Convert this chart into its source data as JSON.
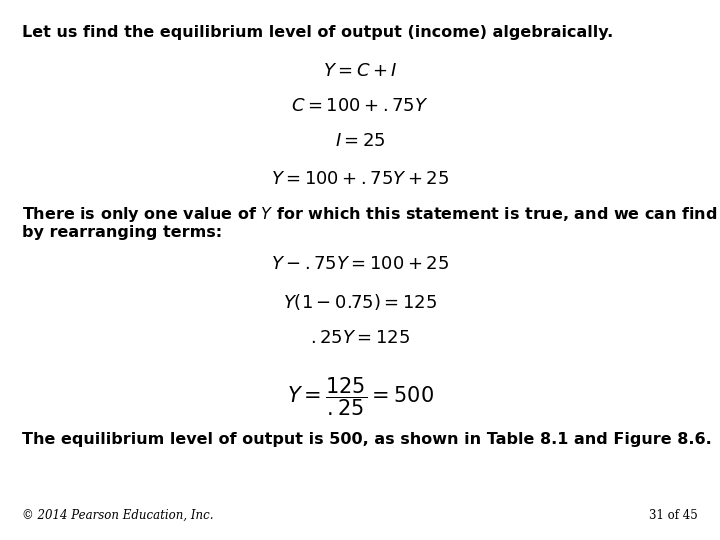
{
  "bg_color": "#ffffff",
  "text_color": "#000000",
  "title_text": "Let us find the equilibrium level of output (income) algebraically.",
  "eq1": "$Y = C + I$",
  "eq2": "$C = 100 + .75Y$",
  "eq3": "$I = 25$",
  "eq4": "$Y = 100 + .75Y + 25$",
  "body_line1": "There is only one value of $Y$ for which this statement is true, and we can find it",
  "body_line2": "by rearranging terms:",
  "eq5": "$Y - .75Y = 100 + 25$",
  "eq6": "$Y(1 - 0.75) = 125$",
  "eq7": "$.25Y = 125$",
  "eq8": "$Y = \\dfrac{125}{.25} = 500$",
  "conclusion": "The equilibrium level of output is 500, as shown in Table 8.1 and Figure 8.6.",
  "footer_left": "© 2014 Pearson Education, Inc.",
  "footer_right": "31 of 45",
  "title_fontsize": 11.5,
  "body_fontsize": 11.5,
  "eq_fontsize": 13,
  "footer_fontsize": 8.5
}
